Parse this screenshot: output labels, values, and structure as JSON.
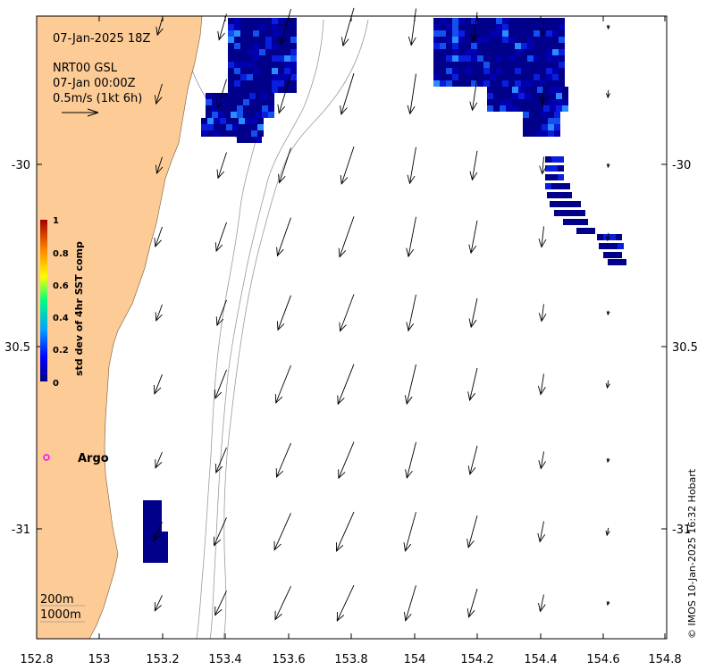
{
  "info": {
    "date_line": "07-Jan-2025 18Z",
    "product_line": "NRT00 GSL",
    "product_date": "07-Jan 00:00Z",
    "scale_label": "0.5m/s (1kt 6h)"
  },
  "axes": {
    "x_ticks": [
      "152.8",
      "153",
      "153.2",
      "153.4",
      "153.6",
      "153.8",
      "154",
      "154.2",
      "154.4",
      "154.6",
      "154.8"
    ],
    "y_ticks": [
      "-30",
      "30.5",
      "-31"
    ]
  },
  "colorbar": {
    "title": "std dev of 4hr SST comp",
    "ticks": [
      "1",
      "0.8",
      "0.6",
      "0.4",
      "0.2",
      "0"
    ],
    "colors": [
      "#000080",
      "#0000ff",
      "#00a0ff",
      "#00ff80",
      "#ffff00",
      "#ff8000",
      "#a00000"
    ]
  },
  "argo": {
    "label": "Argo",
    "marker_color": "#ff00ff"
  },
  "isobaths": {
    "label_200": "200m",
    "label_1000": "1000m"
  },
  "credit": "© IMOS 10-Jan-2025 16:32 Hobart",
  "map_style": {
    "land_color": "#fccb96",
    "ocean_color": "#ffffff",
    "arrow_color": "#000000",
    "sst_low": "#00008b"
  }
}
